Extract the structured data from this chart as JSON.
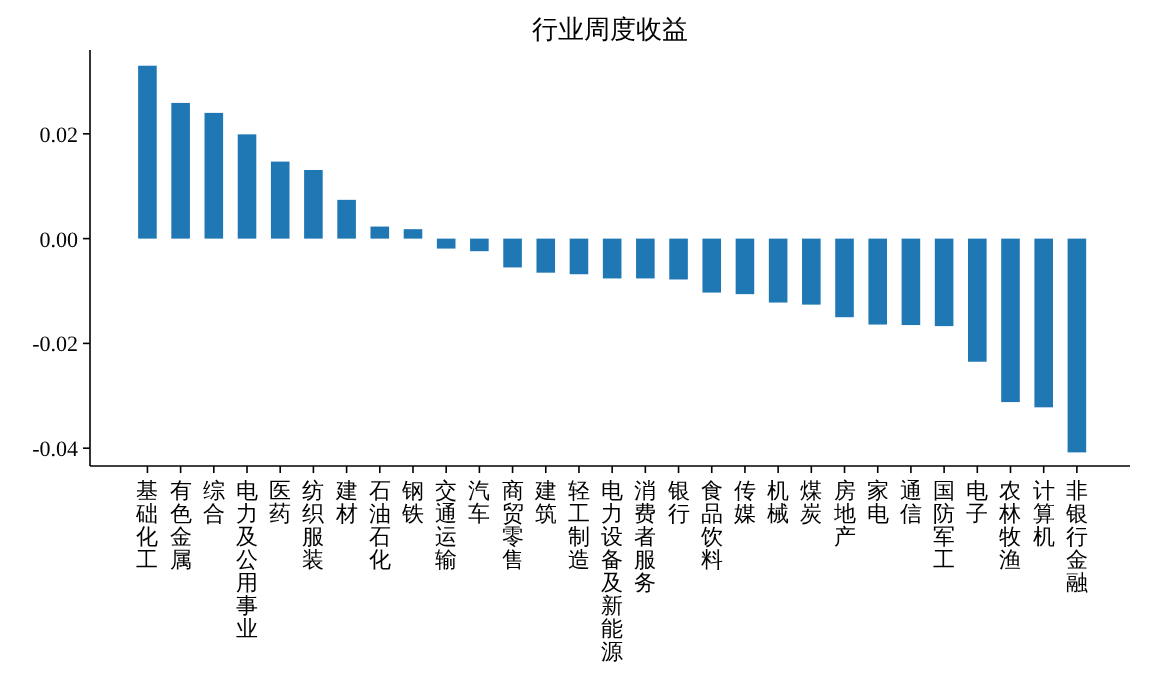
{
  "chart_data": {
    "type": "bar",
    "title": "行业周度收益",
    "categories": [
      "基础化工",
      "有色金属",
      "综合",
      "电力及公用事业",
      "医药",
      "纺织服装",
      "建材",
      "石油石化",
      "钢铁",
      "交通运输",
      "汽车",
      "商贸零售",
      "建筑",
      "轻工制造",
      "电力设备及新能源",
      "消费者服务",
      "银行",
      "食品饮料",
      "传媒",
      "机械",
      "煤炭",
      "房地产",
      "家电",
      "通信",
      "国防军工",
      "电子",
      "农林牧渔",
      "计算机",
      "非银行金融"
    ],
    "values": [
      0.033,
      0.0259,
      0.024,
      0.0199,
      0.0147,
      0.0131,
      0.0074,
      0.0023,
      0.0018,
      -0.0019,
      -0.0024,
      -0.0055,
      -0.0065,
      -0.0068,
      -0.0076,
      -0.0076,
      -0.0078,
      -0.0103,
      -0.0106,
      -0.0122,
      -0.0126,
      -0.015,
      -0.0164,
      -0.0165,
      -0.0167,
      -0.0235,
      -0.0312,
      -0.0322,
      -0.0408
    ],
    "color": "#1f77b4",
    "ylim": [
      -0.0434,
      0.036
    ],
    "yticks": [
      {
        "value": -0.04,
        "label": "-0.04"
      },
      {
        "value": -0.02,
        "label": "-0.02"
      },
      {
        "value": 0,
        "label": "0.00"
      },
      {
        "value": 0.02,
        "label": "0.02"
      }
    ],
    "grid": false,
    "legend": false
  }
}
